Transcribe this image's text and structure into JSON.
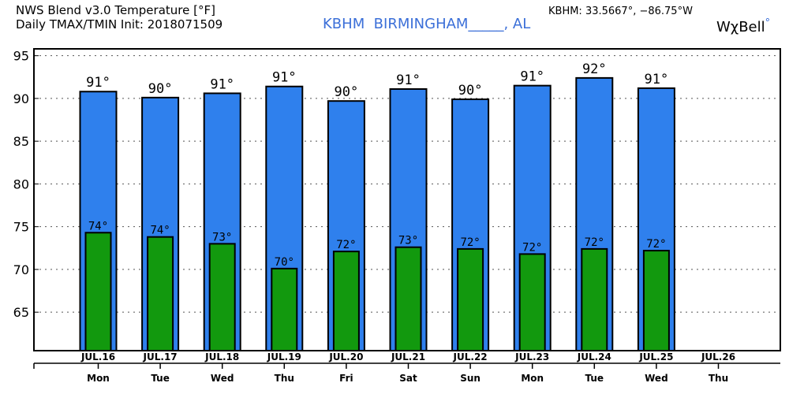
{
  "header": {
    "title_line1": "NWS Blend v3.0 Temperature [°F]",
    "title_line2": "Daily TMAX/TMIN Init: 2018071509",
    "location": "KBHM  BIRMINGHAM_____, AL",
    "coords": "KBHM: 33.5667°, −86.75°W",
    "brand": "WχBell",
    "brand_dot": "°"
  },
  "colors": {
    "tmax": "#2f80ed",
    "tmin": "#12990e"
  },
  "chart_data": {
    "type": "bar",
    "title": "NWS Blend v3.0 Temperature [°F] Daily TMAX/TMIN",
    "xlabel": "",
    "ylabel": "",
    "ylim": [
      60.5,
      95.8
    ],
    "yticks": [
      65,
      70,
      75,
      80,
      85,
      90,
      95
    ],
    "categories": [
      "JUL.16",
      "JUL.17",
      "JUL.18",
      "JUL.19",
      "JUL.20",
      "JUL.21",
      "JUL.22",
      "JUL.23",
      "JUL.24",
      "JUL.25",
      "JUL.26"
    ],
    "weekdays": [
      "Mon",
      "Tue",
      "Wed",
      "Thu",
      "Fri",
      "Sat",
      "Sun",
      "Mon",
      "Tue",
      "Wed",
      "Thu"
    ],
    "series": [
      {
        "name": "TMAX",
        "values": [
          90.8,
          90.1,
          90.6,
          91.4,
          89.7,
          91.1,
          89.9,
          91.5,
          92.4,
          91.2,
          null
        ],
        "labels": [
          "91°",
          "90°",
          "91°",
          "91°",
          "90°",
          "91°",
          "90°",
          "91°",
          "92°",
          "91°",
          ""
        ]
      },
      {
        "name": "TMIN",
        "values": [
          74.3,
          73.8,
          73.0,
          70.1,
          72.1,
          72.6,
          72.4,
          71.8,
          72.4,
          72.2,
          null
        ],
        "labels": [
          "74°",
          "74°",
          "73°",
          "70°",
          "72°",
          "73°",
          "72°",
          "72°",
          "72°",
          "72°",
          ""
        ]
      }
    ],
    "grid": true,
    "legend": "none"
  }
}
